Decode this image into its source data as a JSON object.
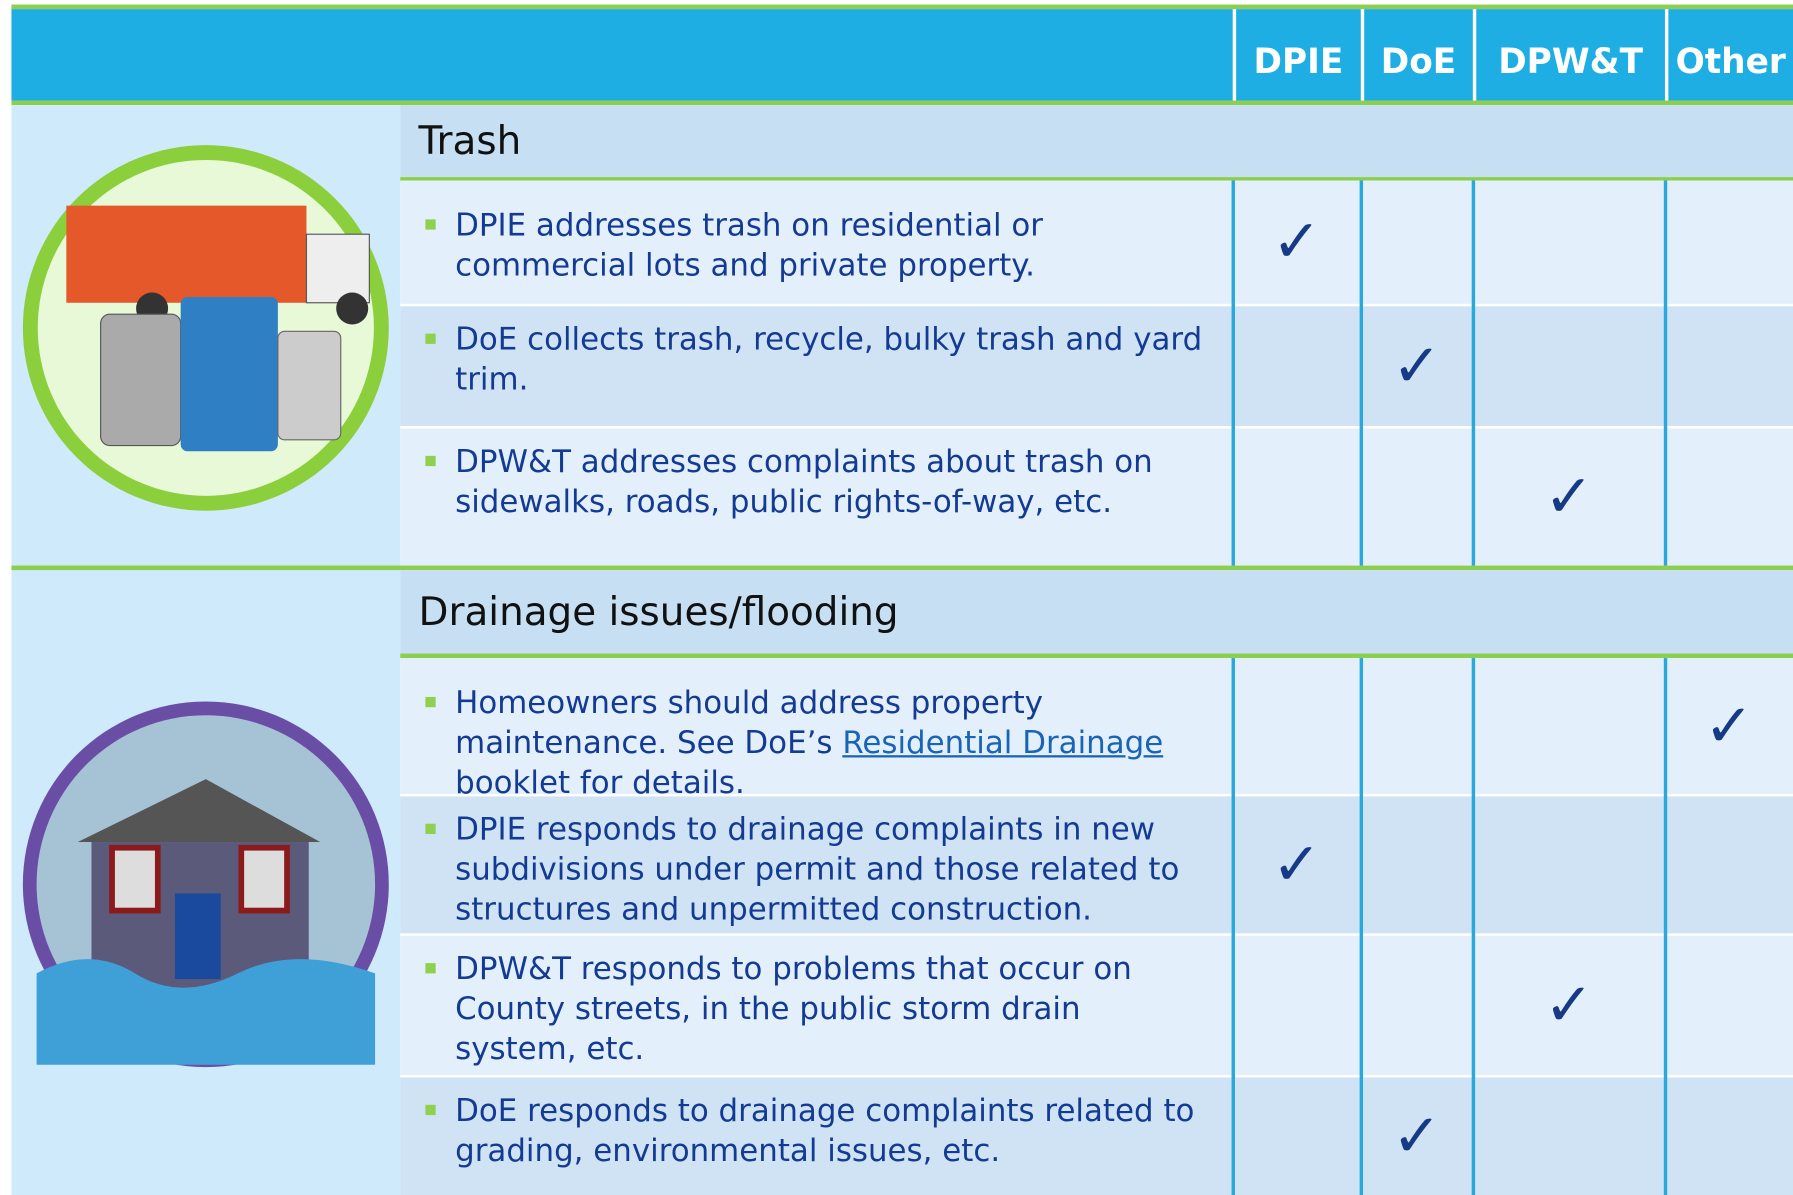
{
  "header": {
    "columns": [
      "DPIE",
      "DoE",
      "DPW&T",
      "Other"
    ]
  },
  "sections": [
    {
      "title": "Trash",
      "rows": [
        {
          "text": "DPIE addresses trash on residential or commercial lots and private property.",
          "cells": [
            "✓",
            null,
            null,
            null
          ]
        },
        {
          "text": "DoE collects trash, recycle, bulky trash and yard trim.",
          "cells": [
            null,
            "✓",
            null,
            null
          ]
        },
        {
          "text": "DPW&T addresses complaints about trash on sidewalks, roads, public rights-of-way, etc.",
          "cells": [
            null,
            null,
            "✓",
            null
          ]
        }
      ]
    },
    {
      "title": "Drainage issues/flooding",
      "rows": [
        {
          "text": "Homeowners should address property maintenance. See DoE’s",
          "link": "Residential Drainage",
          "text_after": "booklet for details.",
          "cells": [
            null,
            null,
            null,
            "✓"
          ]
        },
        {
          "text": "DPIE responds to drainage complaints in new subdivisions under permit and those related to structures and unpermitted construction.",
          "cells": [
            "✓",
            null,
            null,
            null
          ]
        },
        {
          "text": "DPW&T responds to problems that occur on County streets, in the public storm drain system, etc.",
          "cells": [
            null,
            null,
            "✓",
            null
          ]
        },
        {
          "text": "DoE responds to drainage complaints related to grading, environmental issues, etc.",
          "cells": [
            null,
            "✓",
            null,
            null
          ]
        }
      ]
    }
  ]
}
